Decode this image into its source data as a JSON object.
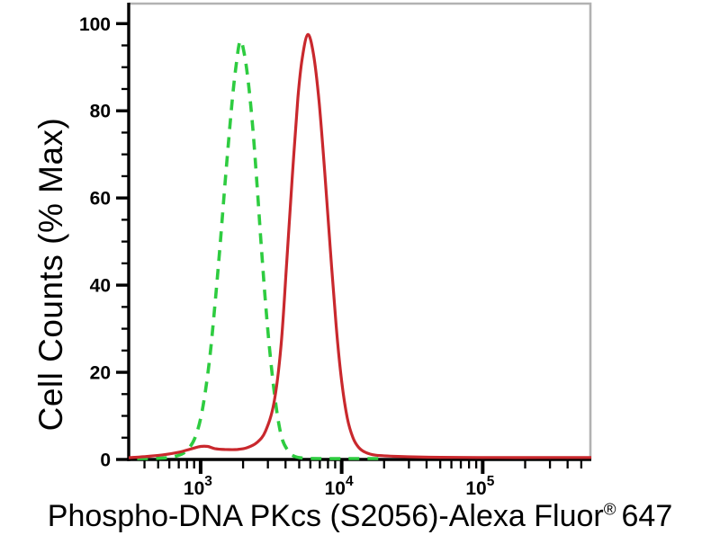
{
  "figure": {
    "background_color": "#ffffff",
    "frame_color": "#b2b2b2",
    "axis_color": "#000000",
    "tick_label_color": "#000000"
  },
  "chart_data": {
    "type": "line",
    "subtype": "flow_cytometry_histogram_overlay",
    "title": "",
    "grid": "off",
    "legend": "none",
    "x_axis": {
      "title_prefix": "Phospho-DNA PKcs (S2056)-Alexa Fluor",
      "title_registered_mark": "®",
      "title_suffix": "647",
      "scale": "log10",
      "range_log10": [
        2.49,
        5.77
      ],
      "major_ticks": [
        {
          "log10": 3,
          "mantissa": "10",
          "exponent": "3"
        },
        {
          "log10": 4,
          "mantissa": "10",
          "exponent": "4"
        },
        {
          "log10": 5,
          "mantissa": "10",
          "exponent": "5"
        }
      ],
      "minor_ticks_log10": [
        2.602,
        2.699,
        2.778,
        2.845,
        2.903,
        2.954,
        3.301,
        3.477,
        3.602,
        3.699,
        3.778,
        3.845,
        3.903,
        3.954,
        4.301,
        4.477,
        4.602,
        4.699,
        4.778,
        4.845,
        4.903,
        4.954,
        5.301,
        5.477,
        5.602,
        5.699
      ]
    },
    "y_axis": {
      "title": "Cell Counts (% Max)",
      "range": [
        0,
        104.8
      ],
      "major_ticks": [
        {
          "value": 0,
          "label": "0"
        },
        {
          "value": 20,
          "label": "20"
        },
        {
          "value": 40,
          "label": "40"
        },
        {
          "value": 60,
          "label": "60"
        },
        {
          "value": 80,
          "label": "80"
        },
        {
          "value": 100,
          "label": "100"
        }
      ],
      "minor_tick_values": [
        5,
        10,
        15,
        25,
        30,
        35,
        45,
        50,
        55,
        65,
        70,
        75,
        85,
        90,
        95
      ]
    },
    "series": [
      {
        "id": "green-dashed",
        "description": "green dashed histogram, peak ~1.9x10^3 at ~96% Max",
        "color": "#2ecc40",
        "line_style": "dashed",
        "dash_pattern": [
          12,
          9
        ],
        "line_width": 3.6,
        "points_log10x_pcty": [
          [
            2.55,
            0.2
          ],
          [
            2.72,
            0.3
          ],
          [
            2.83,
            0.8
          ],
          [
            2.9,
            2
          ],
          [
            2.96,
            5
          ],
          [
            3.01,
            11
          ],
          [
            3.06,
            22
          ],
          [
            3.1,
            35
          ],
          [
            3.14,
            50
          ],
          [
            3.18,
            66
          ],
          [
            3.22,
            81
          ],
          [
            3.25,
            90
          ],
          [
            3.28,
            96
          ],
          [
            3.31,
            93
          ],
          [
            3.34,
            86
          ],
          [
            3.37,
            76
          ],
          [
            3.4,
            63
          ],
          [
            3.43,
            49
          ],
          [
            3.46,
            36
          ],
          [
            3.49,
            25
          ],
          [
            3.52,
            16
          ],
          [
            3.55,
            9
          ],
          [
            3.58,
            4.5
          ],
          [
            3.62,
            2
          ],
          [
            3.66,
            0.8
          ],
          [
            3.73,
            0.3
          ],
          [
            3.85,
            0.2
          ],
          [
            4.05,
            0.2
          ],
          [
            4.26,
            0.2
          ]
        ]
      },
      {
        "id": "red-solid",
        "description": "red solid histogram, peak ~5.8x10^3 at ~97.5% Max",
        "color": "#c9282d",
        "line_style": "solid",
        "dash_pattern": null,
        "line_width": 3.2,
        "points_log10x_pcty": [
          [
            2.49,
            0.4
          ],
          [
            2.62,
            0.7
          ],
          [
            2.74,
            1.1
          ],
          [
            2.85,
            1.7
          ],
          [
            2.94,
            2.5
          ],
          [
            3.0,
            3.0
          ],
          [
            3.05,
            3.0
          ],
          [
            3.1,
            2.5
          ],
          [
            3.17,
            2.3
          ],
          [
            3.26,
            2.3
          ],
          [
            3.33,
            2.7
          ],
          [
            3.4,
            3.9
          ],
          [
            3.46,
            6.5
          ],
          [
            3.52,
            13
          ],
          [
            3.57,
            26
          ],
          [
            3.61,
            45
          ],
          [
            3.65,
            65
          ],
          [
            3.69,
            83
          ],
          [
            3.72,
            92
          ],
          [
            3.76,
            97.5
          ],
          [
            3.8,
            93
          ],
          [
            3.84,
            82
          ],
          [
            3.88,
            66
          ],
          [
            3.92,
            48
          ],
          [
            3.96,
            31
          ],
          [
            4.0,
            18
          ],
          [
            4.04,
            9.5
          ],
          [
            4.08,
            5
          ],
          [
            4.12,
            2.8
          ],
          [
            4.17,
            1.6
          ],
          [
            4.24,
            1.0
          ],
          [
            4.4,
            0.7
          ],
          [
            4.7,
            0.5
          ],
          [
            5.1,
            0.45
          ],
          [
            5.5,
            0.45
          ],
          [
            5.77,
            0.45
          ]
        ]
      }
    ]
  }
}
